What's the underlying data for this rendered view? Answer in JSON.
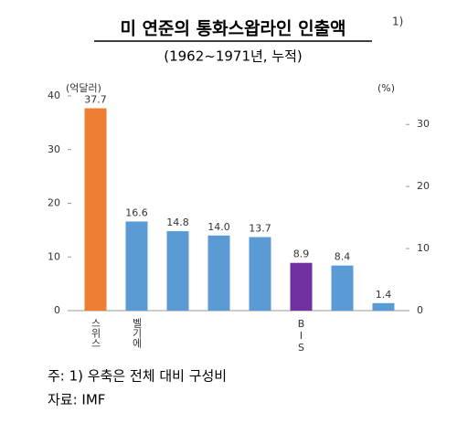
{
  "chart_data": {
    "type": "bar",
    "title": "미 연준의 통화스왑라인 인출액",
    "title_note": "1)",
    "subtitle": "(1962~1971년, 누적)",
    "y_label": "(억달러)",
    "y2_label": "(%)",
    "categories": [
      "스위스",
      "벨기에",
      null,
      null,
      null,
      "BIS",
      null,
      null
    ],
    "values": [
      37.7,
      16.6,
      14.8,
      14,
      13.7,
      8.9,
      8.4,
      1.4
    ],
    "value_labels": [
      "37.7",
      "16.6",
      "14.8",
      "14.0",
      "13.7",
      "8.9",
      "8.4",
      "1.4"
    ],
    "colors": [
      "#ed7d31",
      "#5b9bd5",
      "#5b9bd5",
      "#5b9bd5",
      "#5b9bd5",
      "#7030a0",
      "#5b9bd5",
      "#5b9bd5"
    ],
    "ylim": [
      0,
      40
    ],
    "yticks": [
      0,
      10,
      20,
      30,
      40
    ],
    "y2lim": [
      0,
      34.6
    ],
    "y2ticks": [
      0,
      10,
      20,
      30
    ],
    "grid": false,
    "notes": [
      "주: 1) 우축은 전체 대비 구성비",
      "자료: IMF"
    ]
  }
}
